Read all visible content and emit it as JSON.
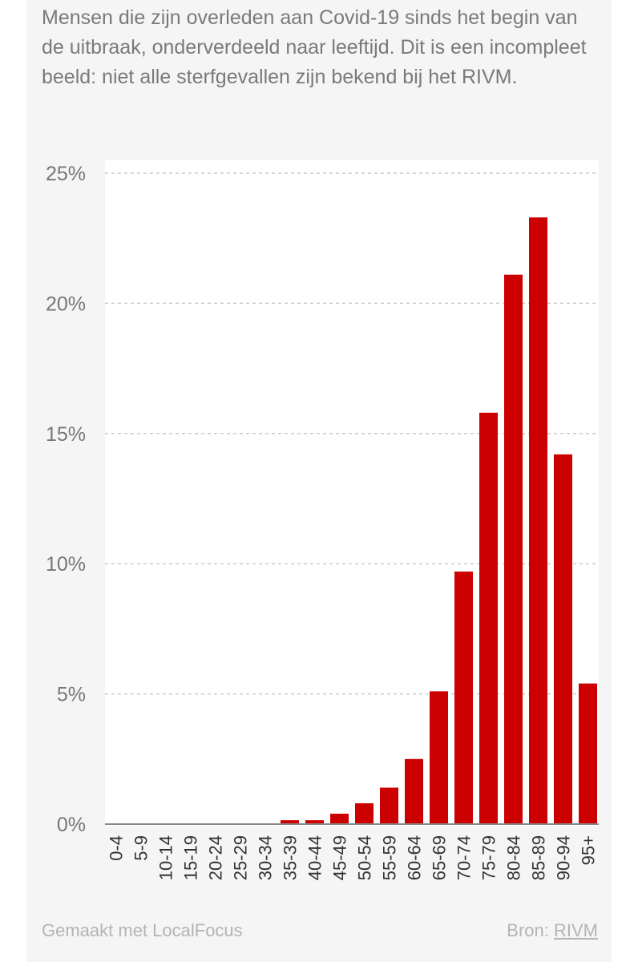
{
  "subtitle": "Mensen die zijn overleden aan Covid-19 sinds het begin van de uitbraak, onderverdeeld naar leeftijd. Dit is een incompleet beeld: niet alle sterfgevallen zijn bekend bij het RIVM.",
  "footer": {
    "made_with": "Gemaakt met LocalFocus",
    "source_label": "Bron:",
    "source_link": "RIVM"
  },
  "colors": {
    "bar": "#cc0000",
    "grid": "#cccccc",
    "axis_text": "#777777",
    "tick_text": "#333333",
    "background": "#f5f5f5"
  },
  "chart_data": {
    "type": "bar",
    "categories": [
      "0-4",
      "5-9",
      "10-14",
      "15-19",
      "20-24",
      "25-29",
      "30-34",
      "35-39",
      "40-44",
      "45-49",
      "50-54",
      "55-59",
      "60-64",
      "65-69",
      "70-74",
      "75-79",
      "80-84",
      "85-89",
      "90-94",
      "95+"
    ],
    "values": [
      0,
      0,
      0,
      0,
      0,
      0,
      0,
      0.15,
      0.15,
      0.4,
      0.8,
      1.4,
      2.5,
      5.1,
      9.7,
      15.8,
      21.1,
      23.3,
      14.2,
      5.4
    ],
    "y_unit": "%",
    "ylim": [
      0,
      25
    ],
    "yticks": [
      0,
      5,
      10,
      15,
      20,
      25
    ],
    "ytick_labels": [
      "0%",
      "5%",
      "10%",
      "15%",
      "20%",
      "25%"
    ],
    "grid": true,
    "legend": false
  }
}
